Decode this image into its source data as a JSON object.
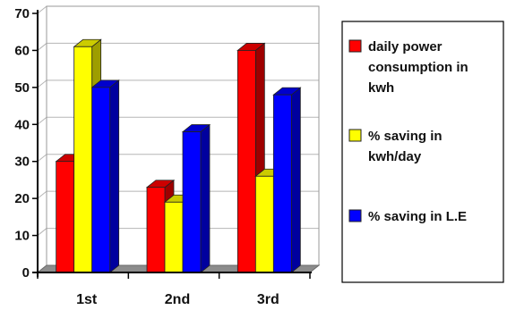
{
  "chart_data": {
    "type": "bar",
    "style": "3d-clustered",
    "categories": [
      "1st",
      "2nd",
      "3rd"
    ],
    "series": [
      {
        "name": "daily power consumption in kwh",
        "legend_lines": [
          "daily power",
          "consumption in",
          "kwh"
        ],
        "color": "#ff0000",
        "values": [
          30,
          23,
          60
        ]
      },
      {
        "name": "% saving in kwh/day",
        "legend_lines": [
          "% saving in",
          "kwh/day"
        ],
        "color": "#ffff00",
        "values": [
          61,
          19,
          26
        ]
      },
      {
        "name": "% saving in L.E",
        "legend_lines": [
          "% saving in L.E"
        ],
        "color": "#0000ff",
        "values": [
          50,
          38,
          48
        ]
      }
    ],
    "title": "",
    "xlabel": "",
    "ylabel": "",
    "ylim": [
      0,
      70
    ],
    "yticks": [
      "0",
      "10",
      "20",
      "30",
      "40",
      "50",
      "60",
      "70"
    ],
    "grid": "horizontal",
    "legend_position": "right"
  }
}
